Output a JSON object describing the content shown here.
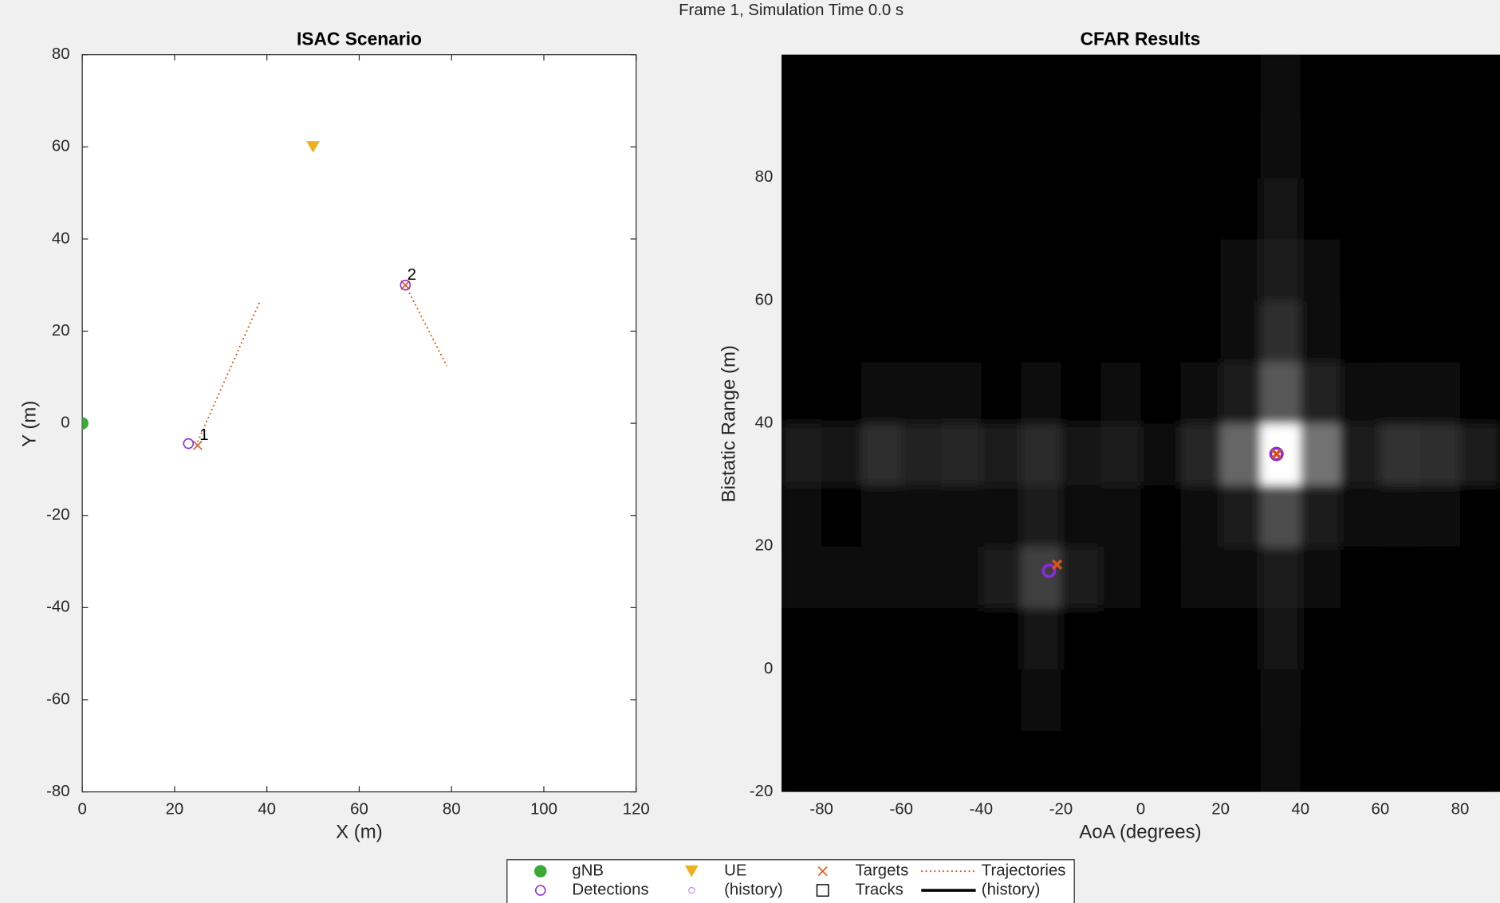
{
  "title": "Frame 1, Simulation Time 0.0 s",
  "legend": [
    {
      "label": "gNB",
      "marker": "dot",
      "color": "#3aaa35"
    },
    {
      "label": "Detections",
      "marker": "o",
      "color": "#8a2be2"
    },
    {
      "label": "UE",
      "marker": "v",
      "color": "#edb120"
    },
    {
      "label": "(history)",
      "marker": "small-o",
      "color": "#d08ae8"
    },
    {
      "label": "Targets",
      "marker": "x",
      "color": "#d95319"
    },
    {
      "label": "Tracks",
      "marker": "square",
      "color": "#000000"
    },
    {
      "label": "Trajectories",
      "marker": "dotted-line",
      "color": "#d95319"
    },
    {
      "label": "(history)",
      "marker": "thick-line",
      "color": "#000000"
    }
  ],
  "chart_data": [
    {
      "type": "scatter",
      "title": "ISAC Scenario",
      "x_label": "X (m)",
      "y_label": "Y (m)",
      "xlim": [
        0,
        120
      ],
      "ylim": [
        -80,
        80
      ],
      "xticks": [
        0,
        20,
        40,
        60,
        80,
        100,
        120
      ],
      "yticks": [
        -80,
        -60,
        -40,
        -20,
        0,
        20,
        40,
        60,
        80
      ],
      "series": [
        {
          "name": "Trajectories",
          "marker": "dotted-line",
          "color": "#d95319",
          "x": [
            25,
            38.5,
            null,
            70,
            79
          ],
          "y": [
            -4,
            26.5,
            null,
            30,
            12.4
          ]
        },
        {
          "name": "gNB",
          "marker": "dot",
          "color": "#3aaa35",
          "x": [
            0
          ],
          "y": [
            0
          ]
        },
        {
          "name": "UE",
          "marker": "v",
          "color": "#edb120",
          "x": [
            50
          ],
          "y": [
            60
          ]
        },
        {
          "name": "Detections",
          "marker": "o",
          "color": "#8a2be2",
          "x": [
            23,
            70
          ],
          "y": [
            -4.4,
            30
          ]
        },
        {
          "name": "Targets",
          "marker": "x",
          "color": "#d95319",
          "x": [
            25,
            70
          ],
          "y": [
            -4.8,
            30
          ],
          "labels": [
            "1",
            "2"
          ]
        }
      ]
    },
    {
      "type": "heatmap",
      "title": "CFAR Results",
      "x_label": "AoA (degrees)",
      "y_label": "Bistatic Range (m)",
      "xlim": [
        -90,
        90
      ],
      "ylim": [
        -20,
        100
      ],
      "xticks": [
        -80,
        -60,
        -40,
        -20,
        0,
        20,
        40,
        60,
        80
      ],
      "yticks": [
        -20,
        0,
        20,
        40,
        60,
        80
      ],
      "x": [
        -85,
        -75,
        -65,
        -55,
        -45,
        -35,
        -25,
        -15,
        -5,
        5,
        15,
        25,
        35,
        45,
        55,
        65,
        75,
        85
      ],
      "y": [
        -15,
        -5,
        5,
        15,
        25,
        35,
        45,
        55,
        65,
        75,
        85,
        95
      ],
      "z": [
        [
          0,
          0,
          0,
          0,
          0,
          0,
          0.02,
          0,
          0,
          0,
          0,
          0,
          0.04,
          0,
          0,
          0,
          0,
          0
        ],
        [
          0,
          0,
          0,
          0,
          0,
          0,
          0.05,
          0,
          0,
          0,
          0,
          0,
          0.06,
          0,
          0,
          0,
          0,
          0
        ],
        [
          0,
          0,
          0,
          0,
          0,
          0,
          0.08,
          0,
          0,
          0,
          0,
          0,
          0.08,
          0,
          0,
          0,
          0,
          0
        ],
        [
          0.04,
          0.04,
          0.05,
          0.04,
          0.05,
          0.1,
          0.25,
          0.1,
          0.05,
          0.02,
          0.03,
          0.04,
          0.12,
          0.04,
          0.02,
          0.02,
          0.02,
          0.02
        ],
        [
          0.03,
          0.02,
          0.04,
          0.03,
          0.03,
          0.04,
          0.12,
          0.04,
          0.03,
          0.02,
          0.04,
          0.1,
          0.3,
          0.1,
          0.03,
          0.04,
          0.03,
          0.02
        ],
        [
          0.12,
          0.08,
          0.18,
          0.14,
          0.15,
          0.1,
          0.16,
          0.08,
          0.12,
          0.06,
          0.15,
          0.4,
          1,
          0.45,
          0.12,
          0.2,
          0.18,
          0.12
        ],
        [
          0.02,
          0.02,
          0.04,
          0.05,
          0.04,
          0.02,
          0.06,
          0.02,
          0.03,
          0.02,
          0.04,
          0.12,
          0.35,
          0.14,
          0.03,
          0.05,
          0.04,
          0.02
        ],
        [
          0,
          0,
          0,
          0,
          0,
          0,
          0,
          0,
          0,
          0,
          0,
          0.06,
          0.18,
          0.06,
          0,
          0,
          0,
          0
        ],
        [
          0,
          0,
          0,
          0,
          0,
          0,
          0,
          0,
          0,
          0,
          0,
          0.04,
          0.12,
          0.04,
          0,
          0,
          0,
          0
        ],
        [
          0,
          0,
          0,
          0,
          0,
          0,
          0,
          0,
          0,
          0,
          0,
          0,
          0.08,
          0,
          0,
          0,
          0,
          0
        ],
        [
          0,
          0,
          0,
          0,
          0,
          0,
          0,
          0,
          0,
          0,
          0,
          0,
          0.06,
          0,
          0,
          0,
          0,
          0
        ],
        [
          0,
          0,
          0,
          0,
          0,
          0,
          0,
          0,
          0,
          0,
          0,
          0,
          0.03,
          0,
          0,
          0,
          0,
          0
        ]
      ],
      "series": [
        {
          "name": "Detections",
          "marker": "o-thick",
          "color": "#8a2be2",
          "x": [
            34,
            -23
          ],
          "y": [
            35,
            16
          ]
        },
        {
          "name": "Targets",
          "marker": "x-thick",
          "color": "#d95319",
          "x": [
            34,
            -21
          ],
          "y": [
            35,
            17
          ]
        }
      ]
    }
  ]
}
